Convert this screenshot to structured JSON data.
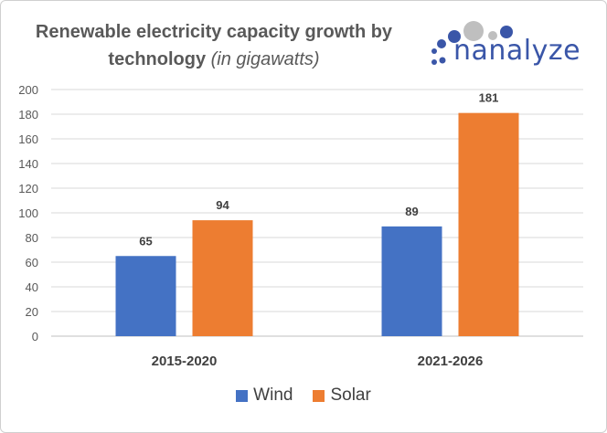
{
  "title": {
    "line1": "Renewable electricity capacity growth by",
    "line2_main": "technology",
    "line2_unit": "(in gigawatts)"
  },
  "logo": {
    "text": "nanalyze"
  },
  "colors": {
    "wind": "#4472c4",
    "solar": "#ed7d31",
    "grid": "#d9d9d9",
    "axis_text": "#595959",
    "label_text": "#404040"
  },
  "chart_data": {
    "type": "bar",
    "title": "Renewable electricity capacity growth by technology (in gigawatts)",
    "categories": [
      "2015-2020",
      "2021-2026"
    ],
    "series": [
      {
        "name": "Wind",
        "values": [
          65,
          89
        ]
      },
      {
        "name": "Solar",
        "values": [
          94,
          181
        ]
      }
    ],
    "ylim": [
      0,
      200
    ],
    "yticks": [
      0,
      20,
      40,
      60,
      80,
      100,
      120,
      140,
      160,
      180,
      200
    ],
    "xlabel": "",
    "ylabel": "",
    "grid": true,
    "legend": "bottom-center",
    "data_labels": true
  }
}
